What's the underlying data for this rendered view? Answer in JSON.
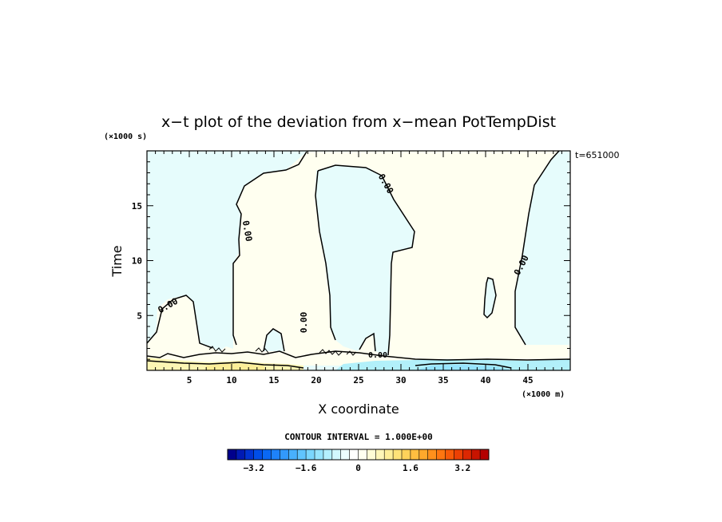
{
  "chart_data": {
    "type": "heatmap",
    "title": "x−t plot of the deviation from x−mean PotTempDist",
    "xlabel": "X coordinate",
    "ylabel": "Time",
    "x_units": "(×1000 m)",
    "y_units": "(×1000 s)",
    "time_stamp": "t=651000",
    "xlim": [
      0,
      50
    ],
    "ylim": [
      0,
      20
    ],
    "x_ticks": [
      "5",
      "10",
      "15",
      "20",
      "25",
      "30",
      "35",
      "40",
      "45"
    ],
    "y_ticks": [
      "5",
      "10",
      "15"
    ],
    "contour_interval": "CONTOUR INTERVAL = 1.000E+00",
    "zero_contour_label": "0.00",
    "colorbar": {
      "range": [
        -4.0,
        4.0
      ],
      "tick_labels": [
        "−3.2",
        "−1.6",
        "0",
        "1.6",
        "3.2"
      ],
      "colors": [
        "#00008c",
        "#001ab4",
        "#0033d2",
        "#004ee8",
        "#0a68f4",
        "#1e82fa",
        "#3299fc",
        "#48b0fd",
        "#60c4fe",
        "#7ad6fe",
        "#96e4fe",
        "#b4f0fe",
        "#d2f8fe",
        "#ecfdff",
        "#ffffff",
        "#fffff0",
        "#fffcd6",
        "#fff6b8",
        "#ffee98",
        "#ffe278",
        "#ffd25a",
        "#ffbe40",
        "#ffa82c",
        "#ff901c",
        "#ff7610",
        "#f85a08",
        "#ec4004",
        "#dc2802",
        "#c81400",
        "#b40000"
      ]
    },
    "regions": [
      {
        "sign": "negative",
        "value": -0.5,
        "color": "#e6fcfc"
      },
      {
        "sign": "positive",
        "value": 0.5,
        "color": "#fffff0"
      },
      {
        "sign": "positive_band",
        "value": 1.5,
        "color": "#fdf6b4"
      },
      {
        "sign": "negative_band",
        "value": -1.5,
        "color": "#b2f0fa"
      }
    ]
  }
}
